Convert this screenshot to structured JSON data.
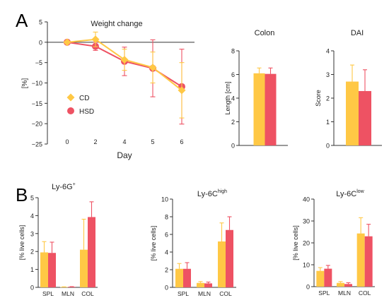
{
  "panel_letters": [
    "A",
    "B"
  ],
  "colors": {
    "CD": "#FFC845",
    "HSD": "#EE5263",
    "axis": "#333333"
  },
  "chart_data": [
    {
      "type": "line",
      "title": "Weight change",
      "xlabel": "Day",
      "ylabel": "[%]",
      "x": [
        0,
        2,
        4,
        5,
        6
      ],
      "x_ticks": [
        "0",
        "2",
        "4",
        "5",
        "6"
      ],
      "ylim": [
        -25,
        5
      ],
      "y_ticks": [
        "5",
        "0",
        "−5",
        "−10",
        "−15",
        "−20",
        "−25"
      ],
      "legend_position": "left",
      "series": [
        {
          "name": "CD",
          "marker": "diamond",
          "values": [
            0,
            0.7,
            -4.3,
            -6.2,
            -11.8
          ],
          "error": [
            0,
            1.8,
            2.6,
            3.8,
            6.8
          ]
        },
        {
          "name": "HSD",
          "marker": "circle",
          "values": [
            0,
            -1.0,
            -4.7,
            -6.4,
            -10.9
          ],
          "error": [
            0,
            1.0,
            3.5,
            7.0,
            9.2
          ]
        }
      ]
    },
    {
      "type": "bar",
      "title": "Colon",
      "ylabel": "Length [cm]",
      "ylim": [
        0,
        8
      ],
      "y_ticks": [
        "0",
        "2",
        "4",
        "6",
        "8"
      ],
      "series": [
        {
          "name": "CD",
          "values": [
            6.1
          ],
          "error": [
            0.45
          ]
        },
        {
          "name": "HSD",
          "values": [
            6.05
          ],
          "error": [
            0.5
          ]
        }
      ]
    },
    {
      "type": "bar",
      "title": "DAI",
      "ylabel": "Score",
      "ylim": [
        0,
        4
      ],
      "y_ticks": [
        "0",
        "1",
        "2",
        "3",
        "4"
      ],
      "series": [
        {
          "name": "CD",
          "values": [
            2.7
          ],
          "error": [
            0.7
          ]
        },
        {
          "name": "HSD",
          "values": [
            2.3
          ],
          "error": [
            0.9
          ]
        }
      ]
    },
    {
      "type": "bar",
      "title_main": "Ly-6G",
      "title_sup": "+",
      "ylabel": "[% live cells]",
      "categories": [
        "SPL",
        "MLN",
        "COL"
      ],
      "ylim": [
        0,
        5
      ],
      "y_ticks": [
        "0",
        "1",
        "2",
        "3",
        "4",
        "5"
      ],
      "series": [
        {
          "name": "CD",
          "values": [
            1.95,
            0.02,
            2.1
          ],
          "error": [
            0.6,
            0.01,
            1.7
          ]
        },
        {
          "name": "HSD",
          "values": [
            1.92,
            0.03,
            3.92
          ],
          "error": [
            0.6,
            0.01,
            0.85
          ]
        }
      ]
    },
    {
      "type": "bar",
      "title_main": "Ly-6C",
      "title_sup": "high",
      "ylabel": "[% live cells]",
      "categories": [
        "SPL",
        "MLN",
        "COL"
      ],
      "ylim": [
        0,
        10
      ],
      "y_ticks": [
        "0",
        "2",
        "4",
        "6",
        "8",
        "10"
      ],
      "series": [
        {
          "name": "CD",
          "values": [
            2.1,
            0.5,
            5.2
          ],
          "error": [
            0.6,
            0.15,
            2.1
          ]
        },
        {
          "name": "HSD",
          "values": [
            2.1,
            0.45,
            6.5
          ],
          "error": [
            0.7,
            0.15,
            1.5
          ]
        }
      ]
    },
    {
      "type": "bar",
      "title_main": "Ly-6C",
      "title_sup": "low",
      "ylabel": "[% live cells]",
      "categories": [
        "SPL",
        "MLN",
        "COL"
      ],
      "ylim": [
        0,
        40
      ],
      "y_ticks": [
        "0",
        "10",
        "20",
        "30",
        "40"
      ],
      "series": [
        {
          "name": "CD",
          "values": [
            7.2,
            1.7,
            24.3
          ],
          "error": [
            1.5,
            0.6,
            7.2
          ]
        },
        {
          "name": "HSD",
          "values": [
            8.2,
            1.2,
            23.0
          ],
          "error": [
            1.5,
            0.6,
            5.5
          ]
        }
      ]
    }
  ]
}
